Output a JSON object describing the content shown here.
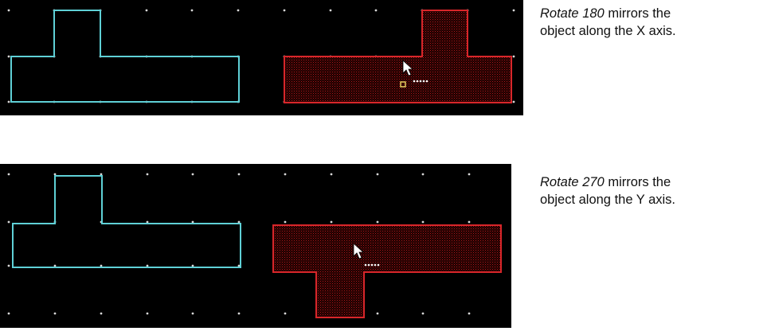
{
  "captions": [
    {
      "command": "Rotate 180",
      "rest_line1": " mirrors the",
      "line2": "object along the X axis."
    },
    {
      "command": "Rotate 270",
      "rest_line1": " mirrors the",
      "line2": "object along the Y axis."
    }
  ],
  "colors": {
    "canvas_background": "#000000",
    "original_outline": "#5fd0d6",
    "selected_outline": "#d8262a",
    "grid_dot": "#d8d8d8"
  },
  "icons": {
    "cursor": "arrow-cursor-icon",
    "handle": "selection-handle-icon"
  }
}
